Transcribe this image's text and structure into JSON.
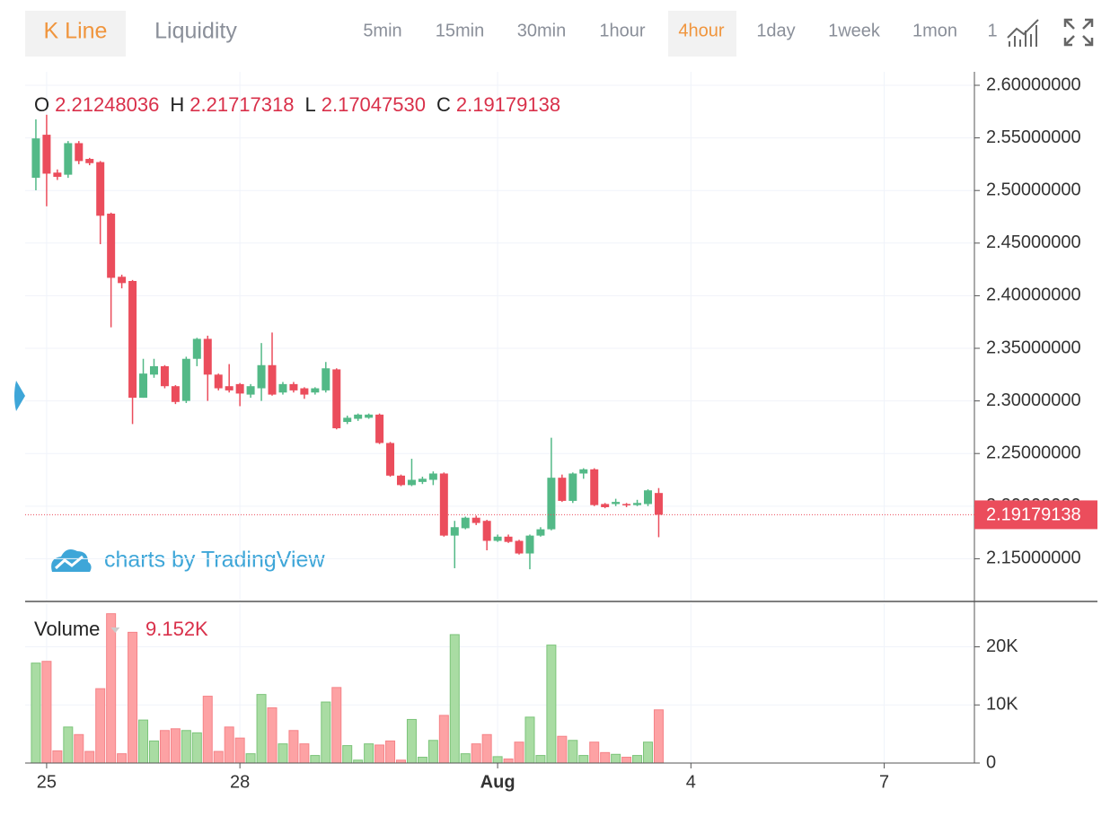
{
  "toolbar": {
    "tabs": [
      "K Line",
      "Liquidity"
    ],
    "active_tab": 0,
    "intervals": [
      "5min",
      "15min",
      "30min",
      "1hour",
      "4hour",
      "1day",
      "1week",
      "1mon",
      "1"
    ],
    "active_interval": 4
  },
  "watermark": "charts by TradingView",
  "chart_data": [
    {
      "type": "candlestick",
      "legend": {
        "keys": [
          "O",
          "H",
          "L",
          "C"
        ],
        "labels": [
          "2.21248036",
          "2.21717318",
          "2.17047530",
          "2.19179138"
        ]
      },
      "last_price_label": "2.19179138",
      "up_color": "#53b987",
      "down_color": "#eb4d5c",
      "open": [
        2.5121,
        2.553,
        2.517,
        2.515,
        2.545,
        2.53,
        2.527,
        2.478,
        2.418,
        2.414,
        2.303,
        2.325,
        2.333,
        2.314,
        2.3,
        2.34,
        2.359,
        2.325,
        2.314,
        2.316,
        2.306,
        2.312,
        2.334,
        2.308,
        2.316,
        2.312,
        2.308,
        2.31,
        2.33,
        2.28,
        2.283,
        2.284,
        2.287,
        2.26,
        2.229,
        2.22,
        2.223,
        2.225,
        2.231,
        2.172,
        2.179,
        2.189,
        2.186,
        2.167,
        2.171,
        2.167,
        2.155,
        2.172,
        2.178,
        2.227,
        2.205,
        2.231,
        2.235,
        2.202,
        2.202,
        2.202,
        2.201,
        2.202,
        2.21248036
      ],
      "high": [
        2.5676,
        2.572,
        2.52,
        2.547,
        2.547,
        2.531,
        2.528,
        2.479,
        2.42,
        2.415,
        2.34,
        2.34,
        2.334,
        2.315,
        2.342,
        2.36,
        2.362,
        2.326,
        2.335,
        2.317,
        2.316,
        2.355,
        2.365,
        2.318,
        2.318,
        2.313,
        2.313,
        2.337,
        2.331,
        2.286,
        2.288,
        2.288,
        2.288,
        2.261,
        2.23,
        2.245,
        2.228,
        2.233,
        2.232,
        2.186,
        2.19,
        2.191,
        2.187,
        2.173,
        2.173,
        2.168,
        2.173,
        2.18,
        2.265,
        2.23,
        2.232,
        2.236,
        2.236,
        2.203,
        2.207,
        2.203,
        2.206,
        2.216,
        2.21717318
      ],
      "low": [
        2.5002,
        2.485,
        2.51,
        2.512,
        2.525,
        2.524,
        2.449,
        2.37,
        2.407,
        2.278,
        2.303,
        2.322,
        2.312,
        2.297,
        2.298,
        2.333,
        2.3,
        2.31,
        2.308,
        2.295,
        2.303,
        2.3,
        2.305,
        2.306,
        2.308,
        2.302,
        2.306,
        2.308,
        2.273,
        2.278,
        2.281,
        2.283,
        2.259,
        2.228,
        2.219,
        2.219,
        2.221,
        2.22,
        2.171,
        2.141,
        2.178,
        2.182,
        2.158,
        2.166,
        2.165,
        2.154,
        2.14,
        2.171,
        2.177,
        2.204,
        2.203,
        2.226,
        2.2,
        2.198,
        2.2,
        2.199,
        2.2,
        2.2,
        2.1704753
      ],
      "close": [
        2.5495,
        2.516,
        2.513,
        2.545,
        2.528,
        2.526,
        2.476,
        2.417,
        2.412,
        2.303,
        2.326,
        2.333,
        2.314,
        2.299,
        2.34,
        2.359,
        2.325,
        2.312,
        2.31,
        2.307,
        2.314,
        2.334,
        2.306,
        2.316,
        2.31,
        2.306,
        2.312,
        2.331,
        2.274,
        2.284,
        2.287,
        2.287,
        2.26,
        2.229,
        2.22,
        2.225,
        2.226,
        2.231,
        2.172,
        2.18,
        2.189,
        2.184,
        2.167,
        2.171,
        2.166,
        2.155,
        2.172,
        2.178,
        2.227,
        2.205,
        2.231,
        2.235,
        2.201,
        2.199,
        2.204,
        2.201,
        2.203,
        2.215,
        2.19179138
      ],
      "xlim": [
        -1,
        87.4
      ],
      "xticks": [
        {
          "value": 1,
          "label": "25"
        },
        {
          "value": 19,
          "label": "28"
        },
        {
          "value": 43,
          "label": "Aug"
        },
        {
          "value": 61,
          "label": "4"
        },
        {
          "value": 79,
          "label": "7"
        }
      ],
      "ylim": [
        2.1094,
        2.6128
      ],
      "yticks": [
        {
          "value": 2.15,
          "label": "2.15000000"
        },
        {
          "value": 2.2,
          "label": "2.20000000"
        },
        {
          "value": 2.25,
          "label": "2.25000000"
        },
        {
          "value": 2.3,
          "label": "2.30000000"
        },
        {
          "value": 2.35,
          "label": "2.35000000"
        },
        {
          "value": 2.4,
          "label": "2.40000000"
        },
        {
          "value": 2.45,
          "label": "2.45000000"
        },
        {
          "value": 2.5,
          "label": "2.50000000"
        },
        {
          "value": 2.55,
          "label": "2.55000000"
        },
        {
          "value": 2.6,
          "label": "2.60000000"
        }
      ],
      "grid": true
    },
    {
      "type": "bar",
      "title": "Volume",
      "last_value_label": "9.152K",
      "up_color": "#a9dca3",
      "down_color": "#fda2a4",
      "values": [
        17200,
        17500,
        2100,
        6200,
        4900,
        2000,
        12800,
        25700,
        1600,
        22500,
        7400,
        3800,
        5600,
        5900,
        5600,
        5200,
        11500,
        2000,
        6200,
        4300,
        1600,
        11800,
        9500,
        3300,
        5600,
        3300,
        1300,
        10500,
        13000,
        3000,
        500,
        3300,
        3100,
        3800,
        500,
        7500,
        1000,
        3900,
        8200,
        22100,
        1600,
        3300,
        4900,
        1100,
        700,
        3600,
        7900,
        1300,
        20300,
        4600,
        3900,
        1300,
        3600,
        1800,
        1500,
        1000,
        1300,
        3600,
        9152
      ],
      "ylim": [
        0,
        27500
      ],
      "yticks": [
        0,
        {
          "value": 10000,
          "label": "10K"
        },
        {
          "value": 20000,
          "label": "20K"
        }
      ],
      "grid": true
    }
  ]
}
